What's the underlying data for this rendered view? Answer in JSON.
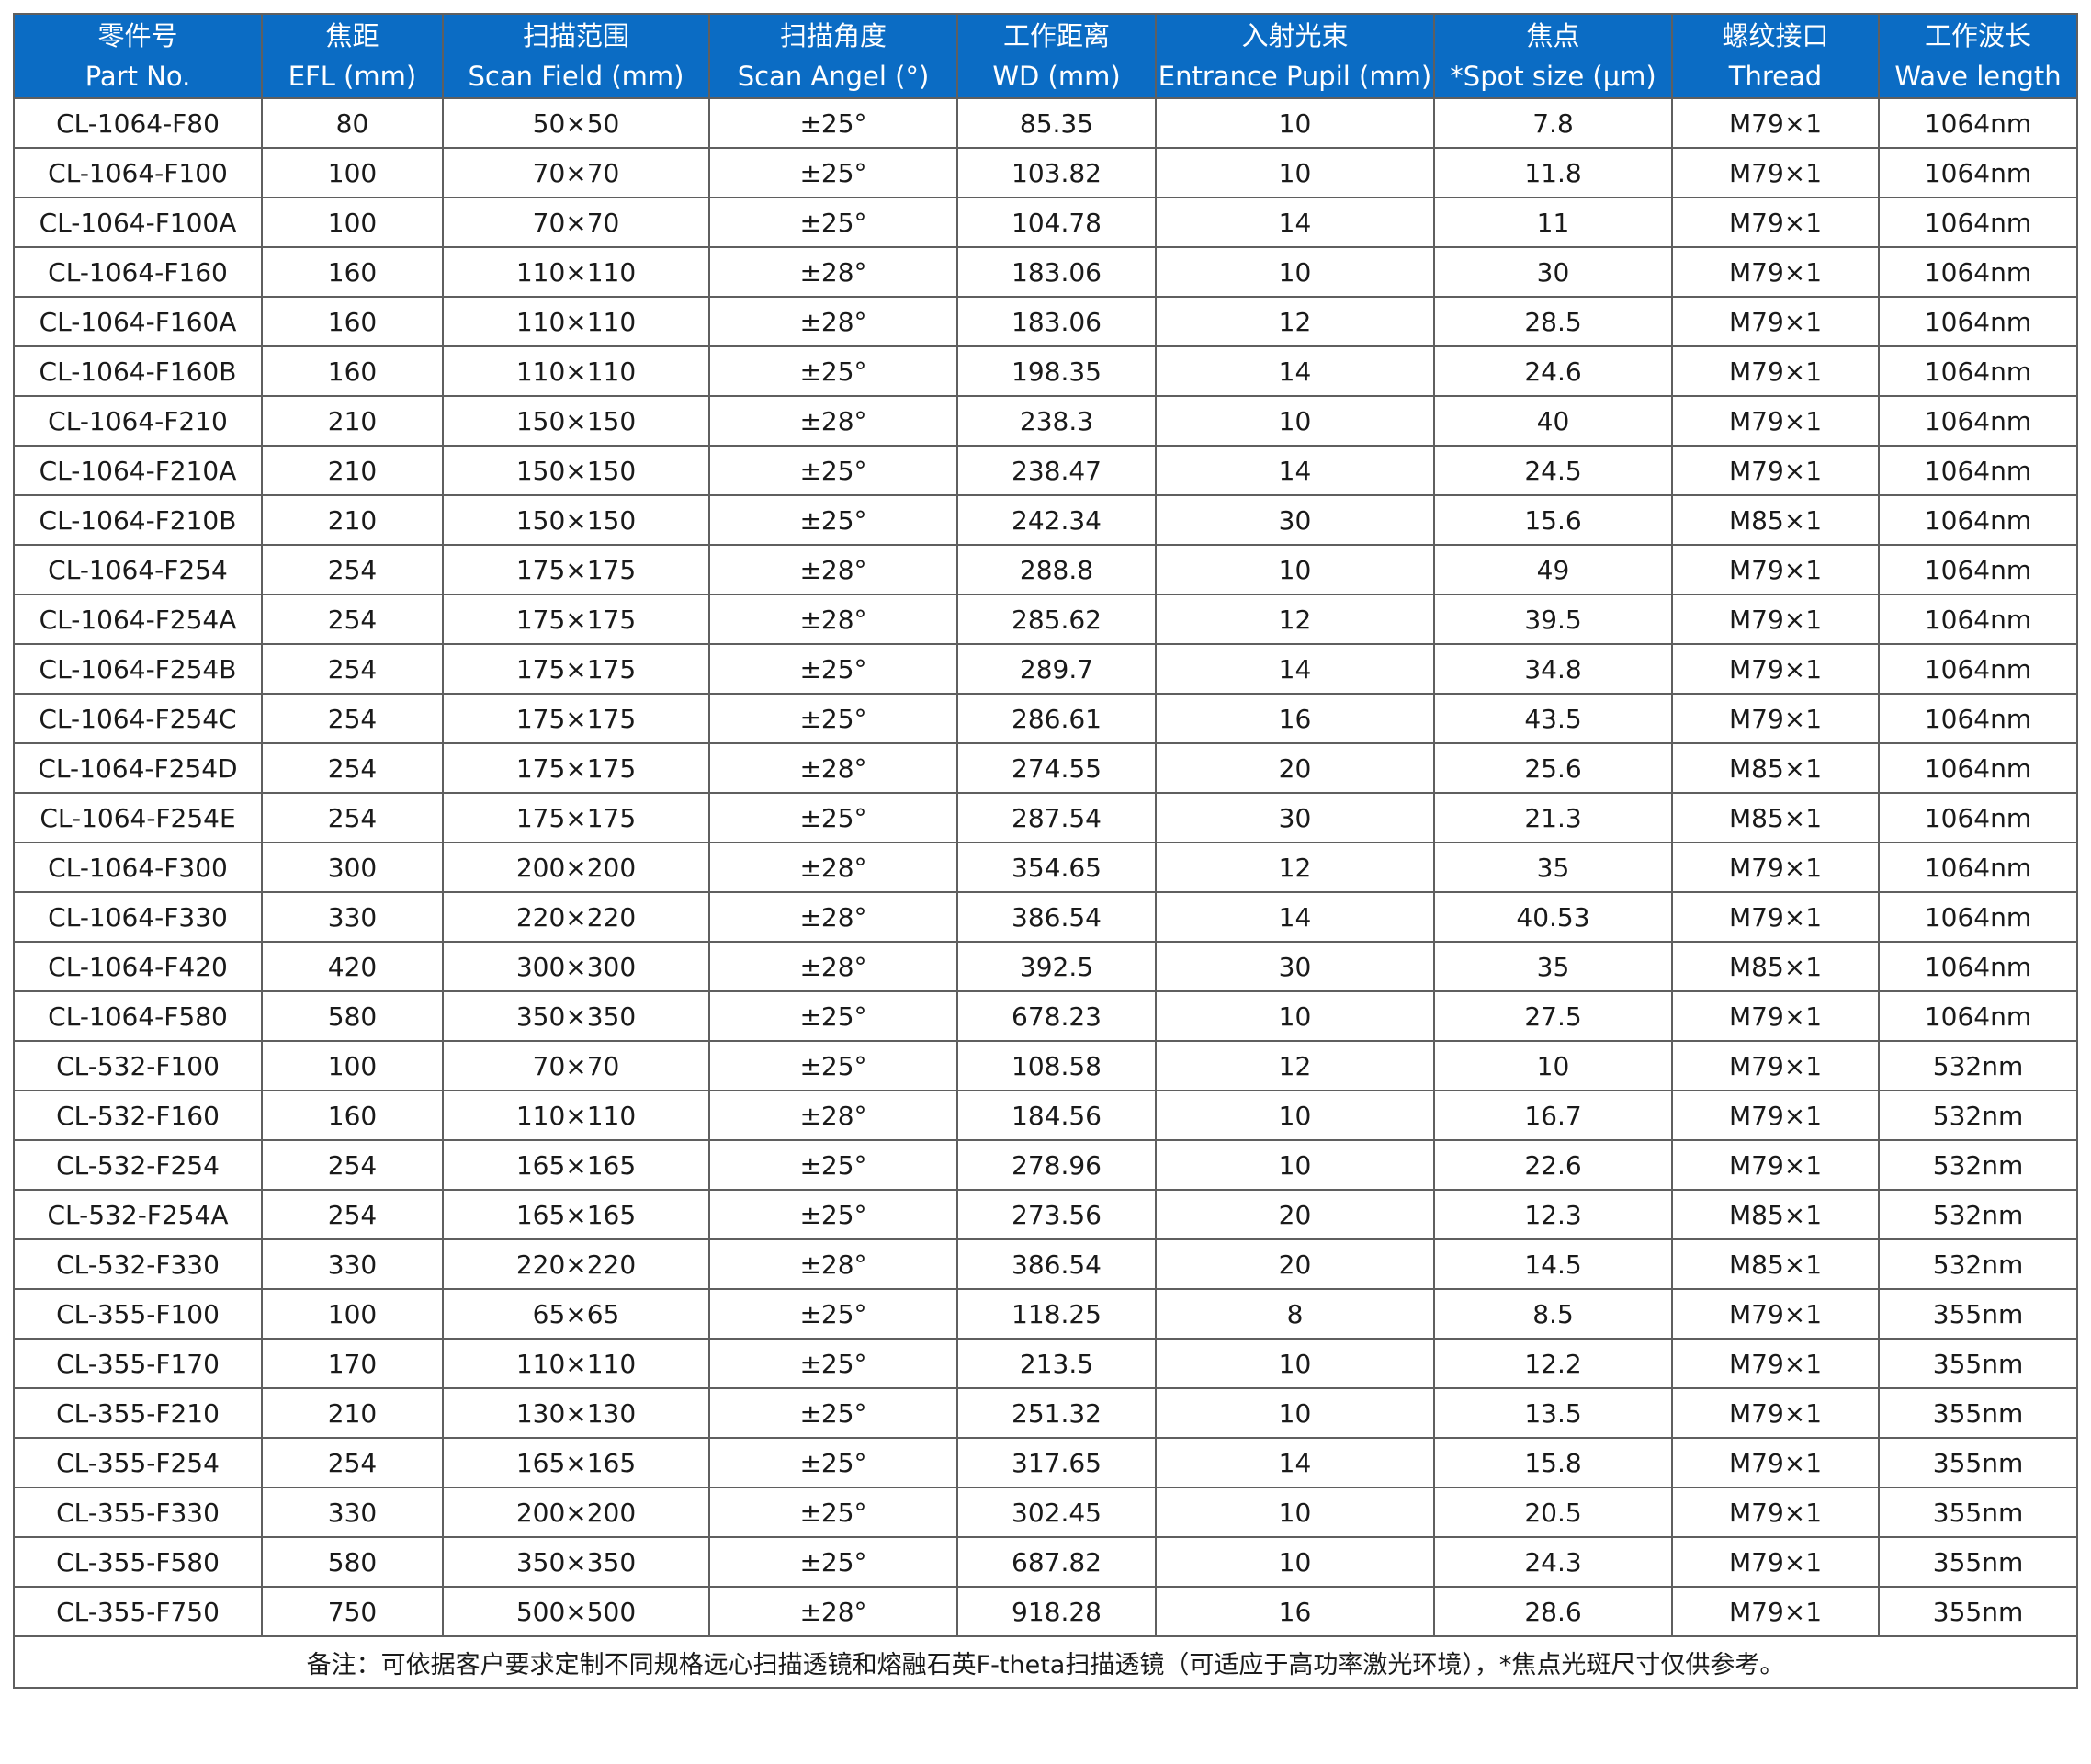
{
  "columns": [
    {
      "zh": "零件号",
      "en": "Part No."
    },
    {
      "zh": "焦距",
      "en": "EFL (mm)"
    },
    {
      "zh": "扫描范围",
      "en": "Scan Field (mm)"
    },
    {
      "zh": "扫描角度",
      "en": "Scan Angel (°)"
    },
    {
      "zh": "工作距离",
      "en": "WD  (mm)"
    },
    {
      "zh": "入射光束",
      "en": "Entrance Pupil (mm)"
    },
    {
      "zh": "焦点",
      "en": "*Spot size (μm)"
    },
    {
      "zh": "螺纹接口",
      "en": "Thread"
    },
    {
      "zh": "工作波长",
      "en": "Wave length"
    }
  ],
  "rows": [
    [
      "CL-1064-F80",
      "80",
      "50×50",
      "±25°",
      "85.35",
      "10",
      "7.8",
      "M79×1",
      "1064nm"
    ],
    [
      "CL-1064-F100",
      "100",
      "70×70",
      "±25°",
      "103.82",
      "10",
      "11.8",
      "M79×1",
      "1064nm"
    ],
    [
      "CL-1064-F100A",
      "100",
      "70×70",
      "±25°",
      "104.78",
      "14",
      "11",
      "M79×1",
      "1064nm"
    ],
    [
      "CL-1064-F160",
      "160",
      "110×110",
      "±28°",
      "183.06",
      "10",
      "30",
      "M79×1",
      "1064nm"
    ],
    [
      "CL-1064-F160A",
      "160",
      "110×110",
      "±28°",
      "183.06",
      "12",
      "28.5",
      "M79×1",
      "1064nm"
    ],
    [
      "CL-1064-F160B",
      "160",
      "110×110",
      "±25°",
      "198.35",
      "14",
      "24.6",
      "M79×1",
      "1064nm"
    ],
    [
      "CL-1064-F210",
      "210",
      "150×150",
      "±28°",
      "238.3",
      "10",
      "40",
      "M79×1",
      "1064nm"
    ],
    [
      "CL-1064-F210A",
      "210",
      "150×150",
      "±25°",
      "238.47",
      "14",
      "24.5",
      "M79×1",
      "1064nm"
    ],
    [
      "CL-1064-F210B",
      "210",
      "150×150",
      "±25°",
      "242.34",
      "30",
      "15.6",
      "M85×1",
      "1064nm"
    ],
    [
      "CL-1064-F254",
      "254",
      "175×175",
      "±28°",
      "288.8",
      "10",
      "49",
      "M79×1",
      "1064nm"
    ],
    [
      "CL-1064-F254A",
      "254",
      "175×175",
      "±28°",
      "285.62",
      "12",
      "39.5",
      "M79×1",
      "1064nm"
    ],
    [
      "CL-1064-F254B",
      "254",
      "175×175",
      "±25°",
      "289.7",
      "14",
      "34.8",
      "M79×1",
      "1064nm"
    ],
    [
      "CL-1064-F254C",
      "254",
      "175×175",
      "±25°",
      "286.61",
      "16",
      "43.5",
      "M79×1",
      "1064nm"
    ],
    [
      "CL-1064-F254D",
      "254",
      "175×175",
      "±28°",
      "274.55",
      "20",
      "25.6",
      "M85×1",
      "1064nm"
    ],
    [
      "CL-1064-F254E",
      "254",
      "175×175",
      "±25°",
      "287.54",
      "30",
      "21.3",
      "M85×1",
      "1064nm"
    ],
    [
      "CL-1064-F300",
      "300",
      "200×200",
      "±28°",
      "354.65",
      "12",
      "35",
      "M79×1",
      "1064nm"
    ],
    [
      "CL-1064-F330",
      "330",
      "220×220",
      "±28°",
      "386.54",
      "14",
      "40.53",
      "M79×1",
      "1064nm"
    ],
    [
      "CL-1064-F420",
      "420",
      "300×300",
      "±28°",
      "392.5",
      "30",
      "35",
      "M85×1",
      "1064nm"
    ],
    [
      "CL-1064-F580",
      "580",
      "350×350",
      "±25°",
      "678.23",
      "10",
      "27.5",
      "M79×1",
      "1064nm"
    ],
    [
      "CL-532-F100",
      "100",
      "70×70",
      "±25°",
      "108.58",
      "12",
      "10",
      "M79×1",
      "532nm"
    ],
    [
      "CL-532-F160",
      "160",
      "110×110",
      "±28°",
      "184.56",
      "10",
      "16.7",
      "M79×1",
      "532nm"
    ],
    [
      "CL-532-F254",
      "254",
      "165×165",
      "±25°",
      "278.96",
      "10",
      "22.6",
      "M79×1",
      "532nm"
    ],
    [
      "CL-532-F254A",
      "254",
      "165×165",
      "±25°",
      "273.56",
      "20",
      "12.3",
      "M85×1",
      "532nm"
    ],
    [
      "CL-532-F330",
      "330",
      "220×220",
      "±28°",
      "386.54",
      "20",
      "14.5",
      "M85×1",
      "532nm"
    ],
    [
      "CL-355-F100",
      "100",
      "65×65",
      "±25°",
      "118.25",
      "8",
      "8.5",
      "M79×1",
      "355nm"
    ],
    [
      "CL-355-F170",
      "170",
      "110×110",
      "±25°",
      "213.5",
      "10",
      "12.2",
      "M79×1",
      "355nm"
    ],
    [
      "CL-355-F210",
      "210",
      "130×130",
      "±25°",
      "251.32",
      "10",
      "13.5",
      "M79×1",
      "355nm"
    ],
    [
      "CL-355-F254",
      "254",
      "165×165",
      "±25°",
      "317.65",
      "14",
      "15.8",
      "M79×1",
      "355nm"
    ],
    [
      "CL-355-F330",
      "330",
      "200×200",
      "±25°",
      "302.45",
      "10",
      "20.5",
      "M79×1",
      "355nm"
    ],
    [
      "CL-355-F580",
      "580",
      "350×350",
      "±25°",
      "687.82",
      "10",
      "24.3",
      "M79×1",
      "355nm"
    ],
    [
      "CL-355-F750",
      "750",
      "500×500",
      "±28°",
      "918.28",
      "16",
      "28.6",
      "M79×1",
      "355nm"
    ]
  ],
  "footnote": "备注：可依据客户要求定制不同规格远心扫描透镜和熔融石英F-theta扫描透镜（可适应于高功率激光环境），*焦点光斑尺寸仅供参考。",
  "colors": {
    "header_bg": "#0b6cc4",
    "header_text": "#ffffff",
    "border": "#5f5f5f",
    "body_text": "#1a1a1a"
  }
}
